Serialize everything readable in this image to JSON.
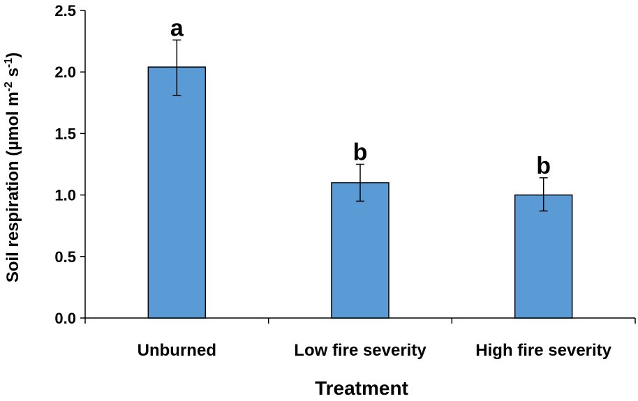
{
  "chart_data": {
    "type": "bar",
    "categories": [
      "Unburned",
      "Low fire severity",
      "High fire severity"
    ],
    "values": [
      2.04,
      1.1,
      1.0
    ],
    "error_upper": [
      2.26,
      1.25,
      1.14
    ],
    "error_lower": [
      1.81,
      0.95,
      0.87
    ],
    "annotations": [
      "a",
      "b",
      "b"
    ],
    "xlabel": "Treatment",
    "ylabel": {
      "prefix": "Soil respiration (µmol m",
      "sup1": "-2",
      "mid": " s",
      "sup2": "-1",
      "suffix": ")"
    },
    "ylim": [
      0,
      2.5
    ],
    "yticks": [
      "0.0",
      "0.5",
      "1.0",
      "1.5",
      "2.0",
      "2.5"
    ],
    "bar_color": "#5b9bd5",
    "bar_edge_color": "#000000",
    "grid": false,
    "legend": "none"
  }
}
